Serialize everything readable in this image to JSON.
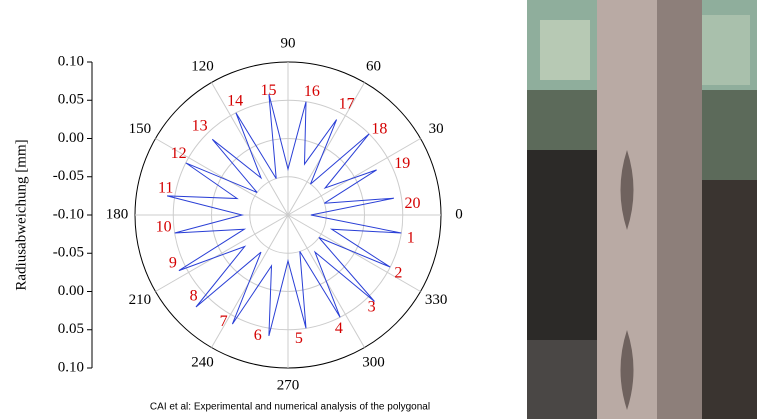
{
  "chart_data": {
    "type": "polar_line",
    "y_label": "Radiusabweichung [mm]",
    "caption": "CAI et al: Experimental and numerical analysis of the polygonal",
    "rlim": [
      -0.1,
      0.1
    ],
    "rticks": [
      -0.05,
      0,
      0.05,
      0.1
    ],
    "left_axis_ticks": [
      {
        "value": 0.1,
        "label": "0.10"
      },
      {
        "value": 0.05,
        "label": "0.05"
      },
      {
        "value": 0,
        "label": "0.00"
      },
      {
        "value": -0.05,
        "label": "-0.05"
      },
      {
        "value": -0.1,
        "label": "-0.10"
      },
      {
        "value": -0.05,
        "label": "-0.05"
      },
      {
        "value": 0,
        "label": "0.00"
      },
      {
        "value": 0.05,
        "label": "0.05"
      },
      {
        "value": 0.1,
        "label": "0.10"
      }
    ],
    "thetaticks": [
      0,
      30,
      60,
      90,
      120,
      150,
      180,
      210,
      240,
      270,
      300,
      330
    ],
    "grid": true,
    "series": [
      {
        "color": "#2a3fd6",
        "x": [
          0,
          9,
          18,
          27,
          36,
          45,
          54,
          63,
          72,
          81,
          90,
          99,
          108,
          117,
          126,
          135,
          144,
          153,
          162,
          171,
          180,
          189,
          198,
          207,
          216,
          225,
          234,
          243,
          252,
          261,
          270,
          279,
          288,
          297,
          306,
          315,
          324,
          333,
          342,
          351
        ],
        "values": [
          -0.07,
          0.04,
          -0.05,
          0.03,
          -0.04,
          0.05,
          -0.05,
          0.04,
          -0.03,
          0.05,
          -0.04,
          0.06,
          -0.05,
          0.05,
          -0.04,
          0.04,
          -0.05,
          0.05,
          -0.03,
          0.06,
          -0.04,
          0.05,
          -0.04,
          0.06,
          -0.03,
          0.07,
          -0.04,
          0.06,
          -0.03,
          0.06,
          -0.04,
          0.05,
          -0.05,
          0.05,
          -0.04,
          0.06,
          -0.05,
          0.05,
          -0.04,
          0.05
        ]
      }
    ],
    "annotations": [
      {
        "text": "1",
        "theta": 349
      },
      {
        "text": "2",
        "theta": 332
      },
      {
        "text": "3",
        "theta": 312
      },
      {
        "text": "4",
        "theta": 294
      },
      {
        "text": "5",
        "theta": 275
      },
      {
        "text": "6",
        "theta": 256
      },
      {
        "text": "7",
        "theta": 239
      },
      {
        "text": "8",
        "theta": 221
      },
      {
        "text": "9",
        "theta": 203
      },
      {
        "text": "10",
        "theta": 186
      },
      {
        "text": "11",
        "theta": 168
      },
      {
        "text": "12",
        "theta": 151
      },
      {
        "text": "13",
        "theta": 135
      },
      {
        "text": "14",
        "theta": 115
      },
      {
        "text": "15",
        "theta": 99
      },
      {
        "text": "16",
        "theta": 79
      },
      {
        "text": "17",
        "theta": 62
      },
      {
        "text": "18",
        "theta": 43
      },
      {
        "text": "19",
        "theta": 24
      },
      {
        "text": "20",
        "theta": 5
      }
    ]
  }
}
